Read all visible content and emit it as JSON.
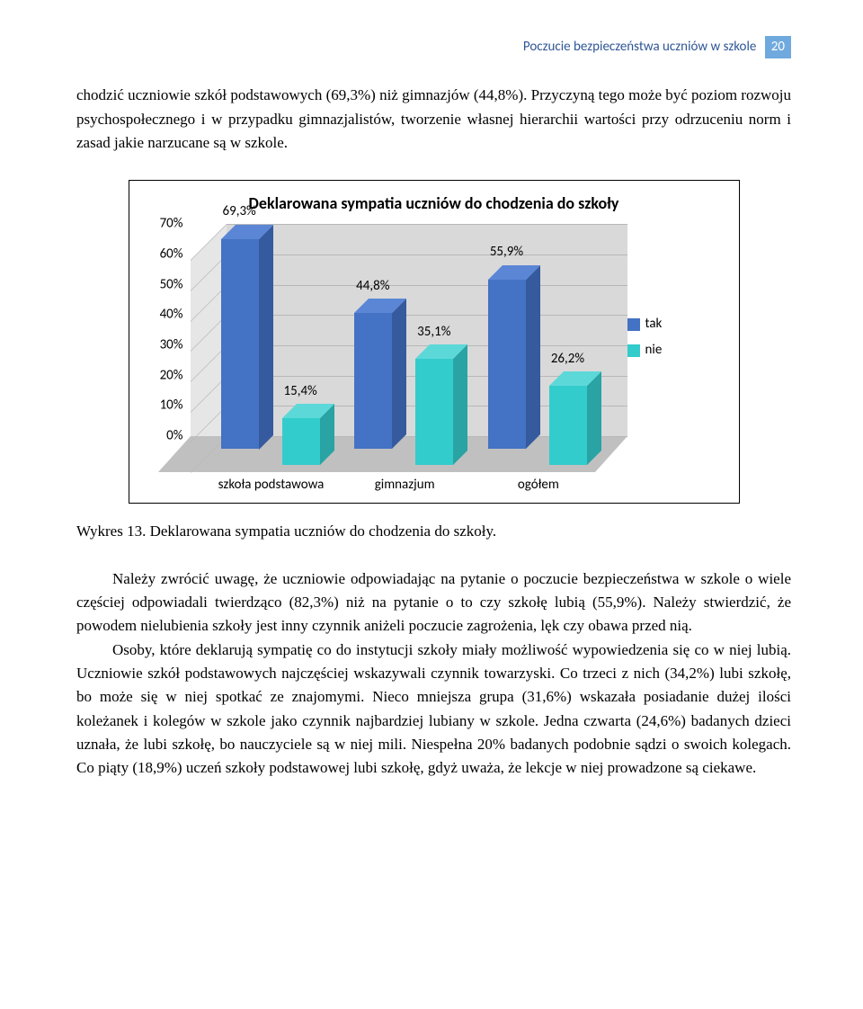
{
  "header": {
    "title": "Poczucie bezpieczeństwa uczniów w szkole",
    "page": "20"
  },
  "para1_a": "chodzić uczniowie szkół podstawowych (69,3%) niż gimnazjów (44,8%). Przyczyną tego może być poziom rozwoju psychospołecznego i w przypadku gimnazjalistów, tworzenie własnej hierarchii wartości przy odrzuceniu norm i zasad jakie narzucane są w szkole.",
  "chart": {
    "title": "Deklarowana sympatia uczniów do chodzenia do szkoły",
    "type": "bar",
    "categories": [
      "szkoła podstawowa",
      "gimnazjum",
      "ogółem"
    ],
    "series": [
      {
        "name": "tak",
        "color": "#4472c4",
        "top": "#5b86d6",
        "side": "#365a9e",
        "values": [
          69.3,
          44.8,
          55.9
        ],
        "labels": [
          "69,3%",
          "44,8%",
          "55,9%"
        ]
      },
      {
        "name": "nie",
        "color": "#33cccc",
        "top": "#5dd8d8",
        "side": "#29a3a3",
        "values": [
          15.4,
          35.1,
          26.2
        ],
        "labels": [
          "15,4%",
          "35,1%",
          "26,2%"
        ]
      }
    ],
    "y_ticks": [
      0,
      10,
      20,
      30,
      40,
      50,
      60,
      70
    ],
    "y_tick_labels": [
      "0%",
      "10%",
      "20%",
      "30%",
      "40%",
      "50%",
      "60%",
      "70%"
    ],
    "ylim_max": 70,
    "legend": [
      "tak",
      "nie"
    ]
  },
  "caption": "Wykres 13. Deklarowana sympatia uczniów do chodzenia do szkoły.",
  "para2": "Należy zwrócić uwagę, że uczniowie odpowiadając na pytanie o poczucie bezpieczeństwa w szkole o wiele częściej odpowiadali twierdząco (82,3%) niż na pytanie o to czy szkołę lubią (55,9%). Należy stwierdzić, że powodem nielubienia szkoły jest inny czynnik aniżeli poczucie zagrożenia, lęk czy obawa przed nią.",
  "para3": "Osoby, które deklarują sympatię co do instytucji szkoły miały możliwość wypowiedzenia się co w niej lubią. Uczniowie szkół podstawowych najczęściej wskazywali czynnik towarzyski. Co trzeci z nich (34,2%) lubi szkołę, bo może się w niej spotkać ze znajomymi. Nieco mniejsza grupa (31,6%) wskazała posiadanie dużej ilości koleżanek i kolegów w szkole jako czynnik najbardziej lubiany w szkole. Jedna czwarta (24,6%)  badanych dzieci uznała, że lubi szkołę, bo nauczyciele są w niej mili. Niespełna 20% badanych podobnie sądzi o swoich kolegach. Co piąty (18,9%) uczeń szkoły podstawowej lubi szkołę, gdyż uważa, że lekcje w niej prowadzone są ciekawe."
}
